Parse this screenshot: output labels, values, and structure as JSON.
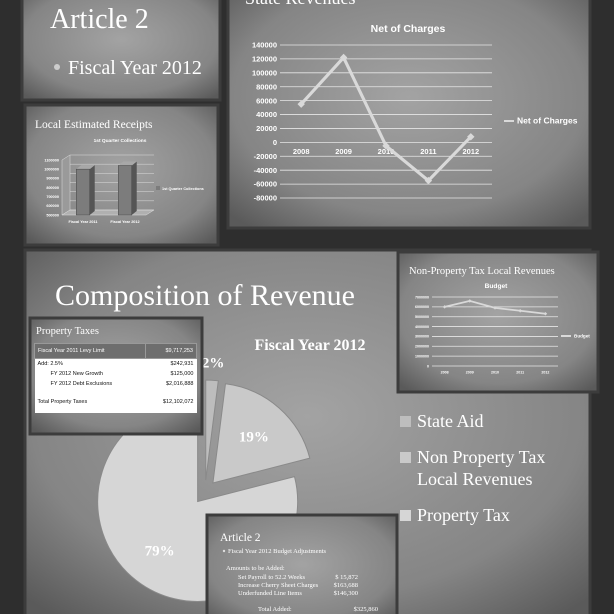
{
  "slides": [
    {
      "title": "Article 2",
      "bullets": [
        "Fiscal Year 2012"
      ]
    },
    {
      "title": "State Revenues",
      "chart": {
        "type": "line",
        "title": "Net of Charges",
        "categories": [
          "2008",
          "2009",
          "2010",
          "2011",
          "2012"
        ],
        "series": [
          {
            "name": "Net of Charges",
            "color": "#d9d9d9",
            "values": [
              55000,
              122000,
              -5000,
              -55000,
              8000
            ]
          }
        ],
        "ylim": [
          -80000,
          140000
        ],
        "yticks": [
          -80000,
          -60000,
          -40000,
          -20000,
          0,
          20000,
          40000,
          60000,
          80000,
          100000,
          120000,
          140000
        ],
        "grid": true,
        "legend": "right"
      }
    },
    {
      "title": "Local Estimated Receipts",
      "chart": {
        "type": "bar",
        "title": "1st Quarter Collections",
        "categories": [
          "Fiscal Year 2011",
          "Fiscal Year 2012"
        ],
        "series": [
          {
            "name": "1st Quarter Collections",
            "color": "#7c7c7c",
            "values": [
              1000000,
              1040000
            ]
          }
        ],
        "ylim": [
          500000,
          1100000
        ],
        "yticks": [
          500000,
          600000,
          700000,
          800000,
          900000,
          1000000,
          1100000
        ],
        "grid": true,
        "legend": "right"
      }
    },
    {
      "title": "Composition of Revenue",
      "chart": {
        "type": "pie",
        "title": "Fiscal Year 2012",
        "categories": [
          "State Aid",
          "Non Property Tax Local Revenues",
          "Property Tax"
        ],
        "values": [
          2,
          19,
          79
        ],
        "value_labels": [
          "2%",
          "19%",
          "79%"
        ],
        "colors": [
          "#bdbdbd",
          "#c9c9c9",
          "#d6d6d6"
        ],
        "legend": "right"
      }
    },
    {
      "title": "Non-Property Tax Local Revenues",
      "chart": {
        "type": "line",
        "title": "Budget",
        "categories": [
          "2008",
          "2009",
          "2010",
          "2011",
          "2012"
        ],
        "series": [
          {
            "name": "Budget",
            "color": "#d9d9d9",
            "values": [
              6000000,
              6600000,
              5900000,
              5600000,
              5300000
            ]
          }
        ],
        "ylim": [
          0,
          7000000
        ],
        "yticks": [
          0,
          1000000,
          2000000,
          3000000,
          4000000,
          5000000,
          6000000,
          7000000
        ],
        "grid": true,
        "legend": "right"
      }
    },
    {
      "title": "Property Taxes",
      "table": {
        "header": [
          "Fiscal Year 2011 Levy Limit",
          "$9,717,253"
        ],
        "rows": [
          [
            "Add: 2.5%",
            "$242,931"
          ],
          [
            "FY 2012 New Growth",
            "$125,000"
          ],
          [
            "FY 2012 Debt Exclusions",
            "$2,016,888"
          ],
          [
            "Total Property Taxes",
            "$12,102,072"
          ]
        ]
      }
    },
    {
      "title": "Article 2",
      "bullets": [
        "Fiscal Year 2012 Budget Adjustments"
      ],
      "subheading": "Amounts to be Added:",
      "items": [
        [
          "Set Payroll to 52.2 Weeks",
          "$ 15,872"
        ],
        [
          "Increase Cherry Sheet Charges",
          "$163,688"
        ],
        [
          "Underfunded Line Items",
          "$146,300"
        ]
      ],
      "total": [
        "Total Added:",
        "$325,860"
      ]
    }
  ]
}
